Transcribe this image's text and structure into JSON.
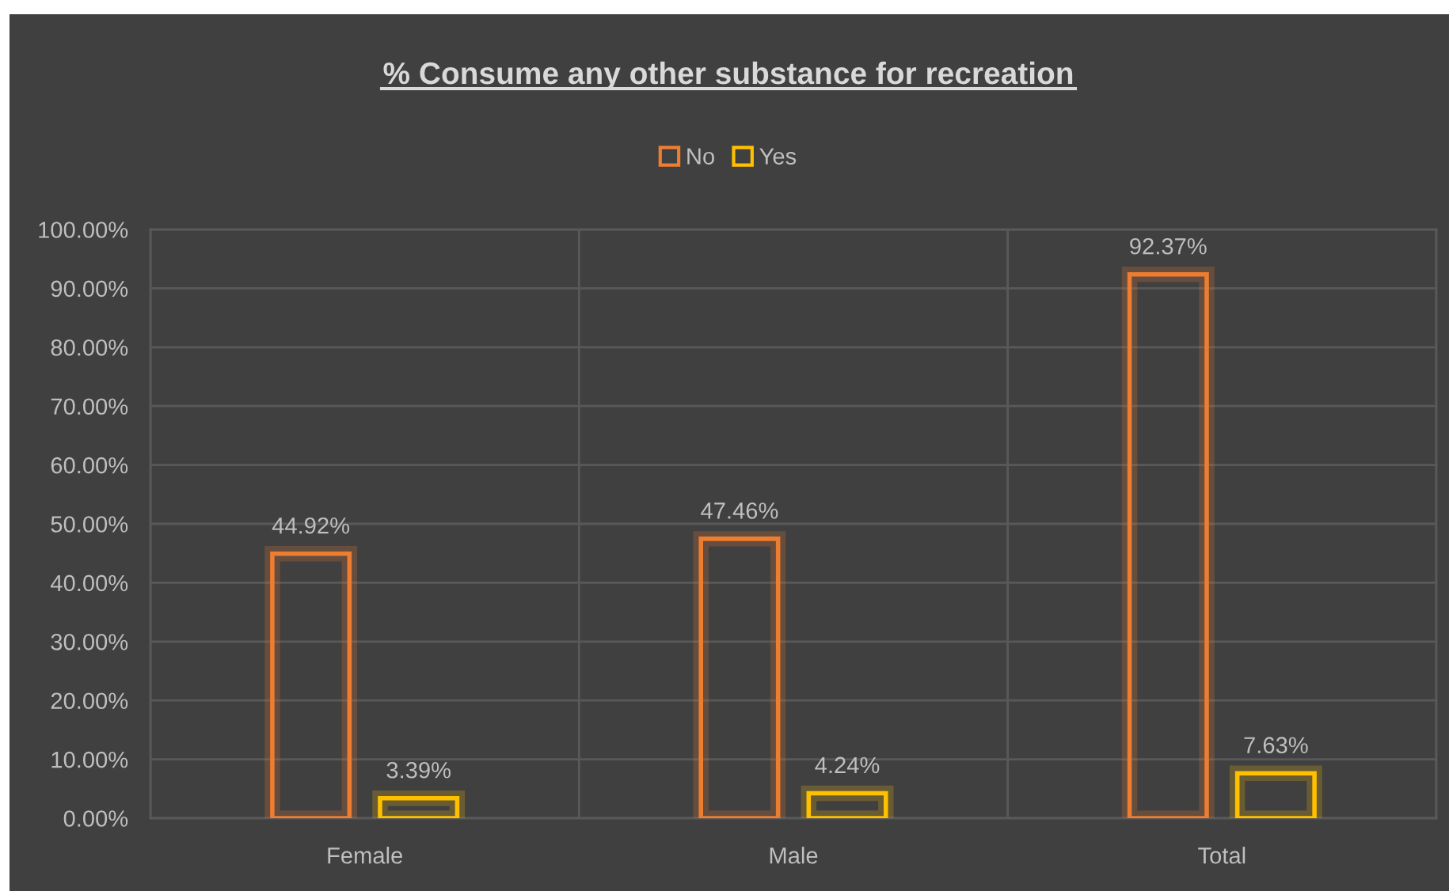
{
  "chart_data": {
    "type": "bar",
    "title": "% Consume any other substance for recreation",
    "categories": [
      "Female",
      "Male",
      "Total"
    ],
    "series": [
      {
        "name": "No",
        "color": "#ed7d31",
        "values": [
          44.92,
          47.46,
          92.37
        ],
        "value_labels": [
          "44.92%",
          "47.46%",
          "92.37%"
        ]
      },
      {
        "name": "Yes",
        "color": "#ffc000",
        "values": [
          3.39,
          4.24,
          7.63
        ],
        "value_labels": [
          "3.39%",
          "4.24%",
          "7.63%"
        ]
      }
    ],
    "ylim": [
      0,
      100
    ],
    "yticks": [
      {
        "value": 0,
        "label": "0.00%"
      },
      {
        "value": 10,
        "label": "10.00%"
      },
      {
        "value": 20,
        "label": "20.00%"
      },
      {
        "value": 30,
        "label": "30.00%"
      },
      {
        "value": 40,
        "label": "40.00%"
      },
      {
        "value": 50,
        "label": "50.00%"
      },
      {
        "value": 60,
        "label": "60.00%"
      },
      {
        "value": 70,
        "label": "70.00%"
      },
      {
        "value": 80,
        "label": "80.00%"
      },
      {
        "value": 90,
        "label": "90.00%"
      },
      {
        "value": 100,
        "label": "100.00%"
      }
    ],
    "grid": true,
    "legend": "top"
  }
}
